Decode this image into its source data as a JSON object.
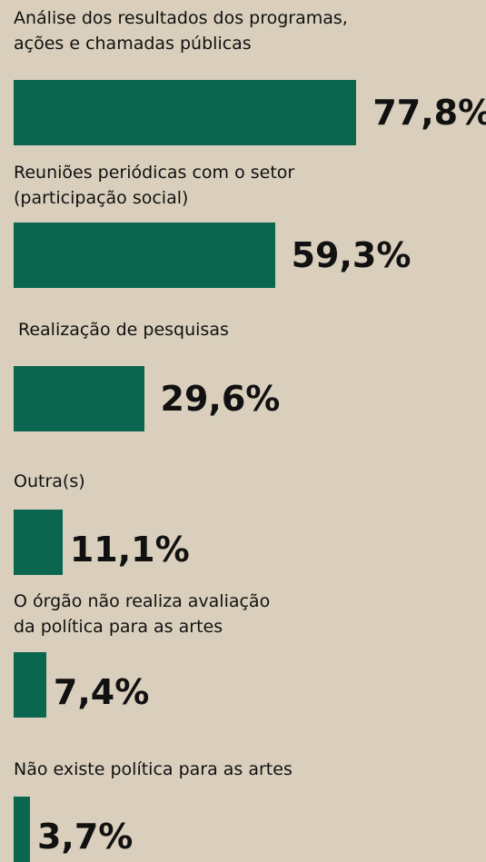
{
  "chart_data": {
    "type": "bar",
    "categories": [
      "Análise dos resultados dos programas,\nações e chamadas públicas",
      "Reuniões periódicas com o setor\n(participação social)",
      "Realização de pesquisas",
      "Outra(s)",
      "O órgão não realiza avaliação\nda política para as artes",
      "Não existe política para as artes"
    ],
    "values": [
      77.8,
      59.3,
      29.6,
      11.1,
      7.4,
      3.7
    ],
    "value_labels": [
      "77,8%",
      "59,3%",
      "29,6%",
      "11,1%",
      "7,4%",
      "3,7%"
    ],
    "color": "#0b6650"
  }
}
